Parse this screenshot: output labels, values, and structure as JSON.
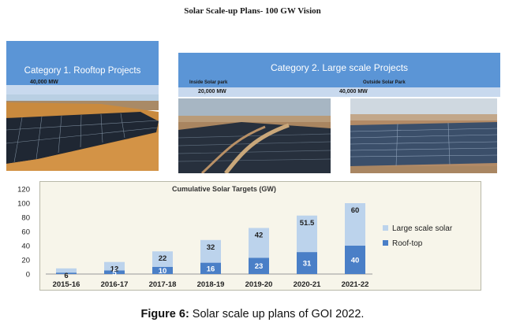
{
  "main_title": "Solar Scale-up Plans- 100 GW Vision",
  "category1": {
    "title": "Category 1. Rooftop Projects",
    "value": "40,000 MW"
  },
  "category2": {
    "title": "Category 2. Large scale Projects",
    "inside_label": "Inside Solar park",
    "inside_value": "20,000 MW",
    "outside_label": "Outside Solar Park",
    "outside_value": "40,000 MW"
  },
  "colors": {
    "header_blue": "#5b95d6",
    "band_blue": "#c8d9ee",
    "rooftop": "#4a7fc7",
    "large_scale": "#bcd3ec",
    "panel_bg": "#f7f5ea"
  },
  "caption": {
    "label": "Figure 6:",
    "text": " Solar scale up plans of GOI 2022."
  },
  "chart_data": {
    "type": "bar",
    "stacked": true,
    "title": "Cumulative Solar Targets (GW)",
    "categories": [
      "2015-16",
      "2016-17",
      "2017-18",
      "2018-19",
      "2019-20",
      "2020-21",
      "2021-22"
    ],
    "series": [
      {
        "name": "Roof-top",
        "color": "#4a7fc7",
        "values": [
          2,
          5,
          10,
          16,
          23,
          31,
          40
        ],
        "labels": [
          "",
          "5",
          "10",
          "16",
          "23",
          "31",
          "40"
        ]
      },
      {
        "name": "Large scale solar",
        "color": "#bcd3ec",
        "values": [
          6,
          12,
          22,
          32,
          42,
          51.5,
          60
        ],
        "labels": [
          "6",
          "12",
          "22",
          "32",
          "42",
          "51.5",
          "60"
        ]
      }
    ],
    "ylim": [
      0,
      120
    ],
    "yticks": [
      0,
      20,
      40,
      60,
      80,
      100,
      120
    ],
    "legend_position": "right",
    "grid": false
  }
}
